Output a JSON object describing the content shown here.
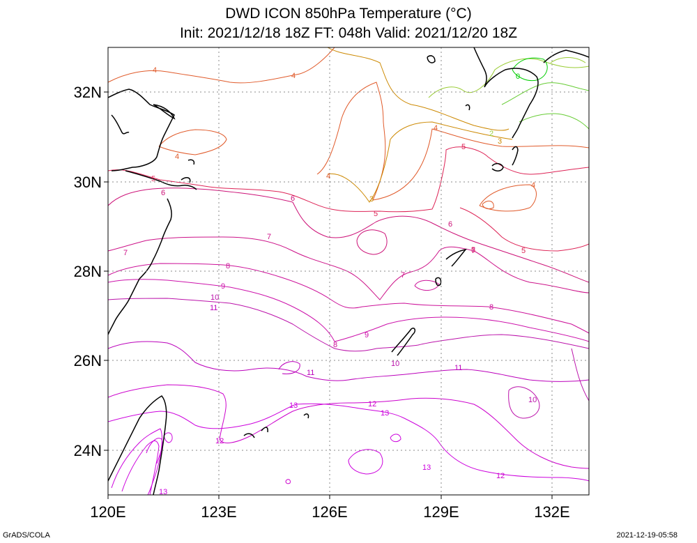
{
  "title": {
    "line1": "DWD ICON 850hPa Temperature (°C)",
    "line2": "Init: 2021/12/18 18Z  FT: 048h  Valid: 2021/12/20 18Z"
  },
  "axes": {
    "lat_labels": [
      "32N",
      "30N",
      "28N",
      "26N",
      "24N"
    ],
    "lon_labels": [
      "120E",
      "123E",
      "126E",
      "129E",
      "132E"
    ]
  },
  "contour_labels": [
    "4",
    "4",
    "4",
    "4",
    "4",
    "4",
    "3",
    "3",
    "2",
    "5",
    "5",
    "5",
    "5",
    "5",
    "6",
    "6",
    "6",
    "7",
    "7",
    "7",
    "7",
    "8",
    "8",
    "8",
    "9",
    "9",
    "10",
    "10",
    "10",
    "11",
    "11",
    "11",
    "12",
    "12",
    "12",
    "13",
    "13",
    "13",
    "13",
    "0"
  ],
  "footer": {
    "left": "GrADS/COLA",
    "right": "2021-12-19-05:58"
  },
  "colors": {
    "c0": "#00cc00",
    "c1": "#66cc33",
    "c2": "#99cc33",
    "c3": "#cc8800",
    "c4": "#e05a2a",
    "c5": "#dd2255",
    "c6": "#cc1177",
    "c7": "#cc1188",
    "c8": "#cc1199",
    "c9": "#cc11aa",
    "c10": "#bb11aa",
    "c11": "#bb00bb",
    "c12": "#cc00cc",
    "c13": "#cc00dd"
  }
}
